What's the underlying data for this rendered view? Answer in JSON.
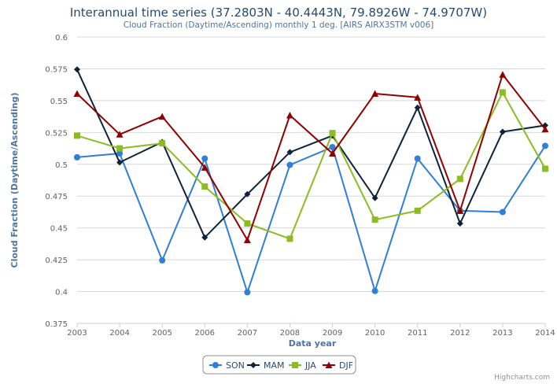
{
  "chart_data": {
    "type": "line",
    "title": "Interannual time series (37.2803N - 40.4443N, 79.8926W - 74.9707W)",
    "subtitle": "Cloud Fraction (Daytime/Ascending) monthly 1 deg. [AIRS AIRX3STM v006]",
    "xlabel": "Data year",
    "ylabel": "Cloud Fraction (Daytime/Ascending)",
    "x": [
      2003,
      2004,
      2005,
      2006,
      2007,
      2008,
      2009,
      2010,
      2011,
      2012,
      2013,
      2014
    ],
    "x_tick_labels": [
      "2003",
      "2004",
      "2005",
      "2006",
      "2007",
      "2008",
      "2009",
      "2010",
      "2011",
      "2012",
      "2013",
      "2014"
    ],
    "ylim": [
      0.375,
      0.6
    ],
    "y_ticks": [
      0.375,
      0.4,
      0.425,
      0.45,
      0.475,
      0.5,
      0.525,
      0.55,
      0.575,
      0.6
    ],
    "y_tick_labels": [
      "0.375",
      "0.4",
      "0.425",
      "0.45",
      "0.475",
      "0.5",
      "0.525",
      "0.55",
      "0.575",
      "0.6"
    ],
    "grid": true,
    "legend_position": "bottom-center",
    "credit": "Highcharts.com",
    "series": [
      {
        "name": "SON",
        "color": "#2f7ed8",
        "marker": "circle",
        "values": [
          0.5055,
          0.5085,
          0.4245,
          0.5045,
          0.3995,
          0.4995,
          0.5135,
          0.4005,
          0.5045,
          0.4635,
          0.4625,
          0.5145
        ]
      },
      {
        "name": "MAM",
        "color": "#0d233a",
        "marker": "diamond",
        "values": [
          0.5745,
          0.5015,
          0.5175,
          0.4425,
          0.4765,
          0.5095,
          0.5225,
          0.4735,
          0.5445,
          0.4535,
          0.5255,
          0.5305
        ]
      },
      {
        "name": "JJA",
        "color": "#8bbc21",
        "marker": "square",
        "values": [
          0.5225,
          0.5125,
          0.5165,
          0.4825,
          0.4535,
          0.4415,
          0.5245,
          0.4565,
          0.4635,
          0.4885,
          0.5565,
          0.4965
        ]
      },
      {
        "name": "DJF",
        "color": "#910000",
        "marker": "triangle",
        "values": [
          0.5555,
          0.5235,
          0.5375,
          0.4975,
          0.4405,
          0.5385,
          0.5085,
          0.5555,
          0.5525,
          0.4635,
          0.5705,
          0.5275
        ]
      }
    ]
  }
}
